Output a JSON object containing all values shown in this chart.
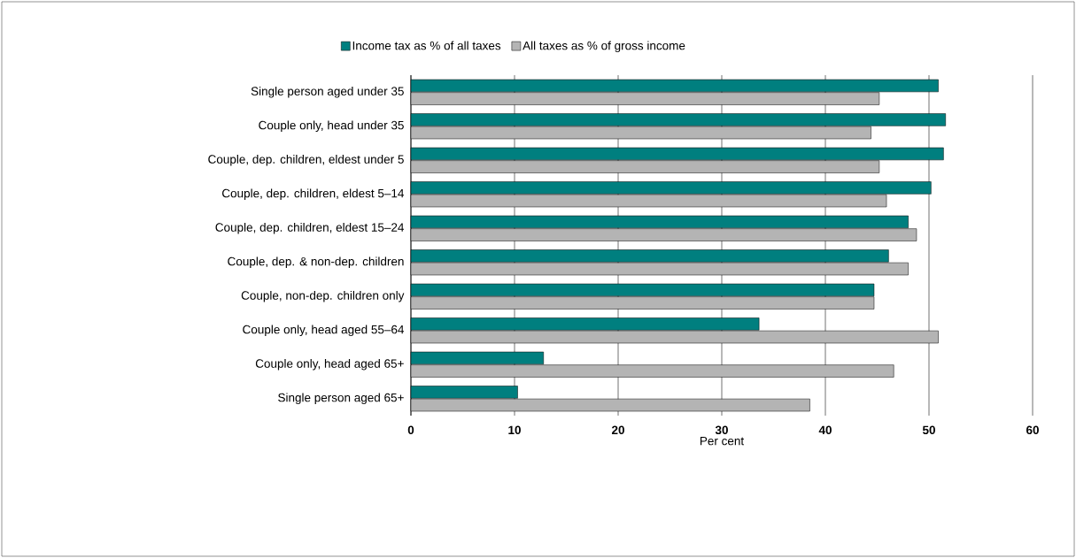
{
  "chart_data": {
    "type": "bar",
    "orientation": "horizontal",
    "xlabel": "Per cent",
    "categories": [
      "Single person aged under 35",
      "Couple only, head under 35",
      "Couple, dep. children, eldest under 5",
      "Couple, dep. children, eldest 5–14",
      "Couple, dep. children, eldest 15–24",
      "Couple, dep. & non-dep. children",
      "Couple, non-dep. children only",
      "Couple only, head aged 55–64",
      "Couple only, head aged 65+",
      "Single person aged 65+"
    ],
    "series": [
      {
        "name": "Income tax as % of all taxes",
        "color": "#007f7f",
        "values": [
          50.9,
          51.6,
          51.4,
          50.2,
          48.0,
          46.1,
          44.7,
          33.6,
          12.8,
          10.3
        ]
      },
      {
        "name": "All taxes as % of gross income",
        "color": "#b4b4b4",
        "values": [
          45.2,
          44.4,
          45.2,
          45.9,
          48.8,
          48.0,
          44.7,
          50.9,
          46.6,
          38.5
        ]
      }
    ],
    "xlim": [
      0,
      60
    ],
    "xticks": [
      0,
      10,
      20,
      30,
      40,
      50,
      60
    ],
    "grid": "x",
    "legend": "top left"
  }
}
